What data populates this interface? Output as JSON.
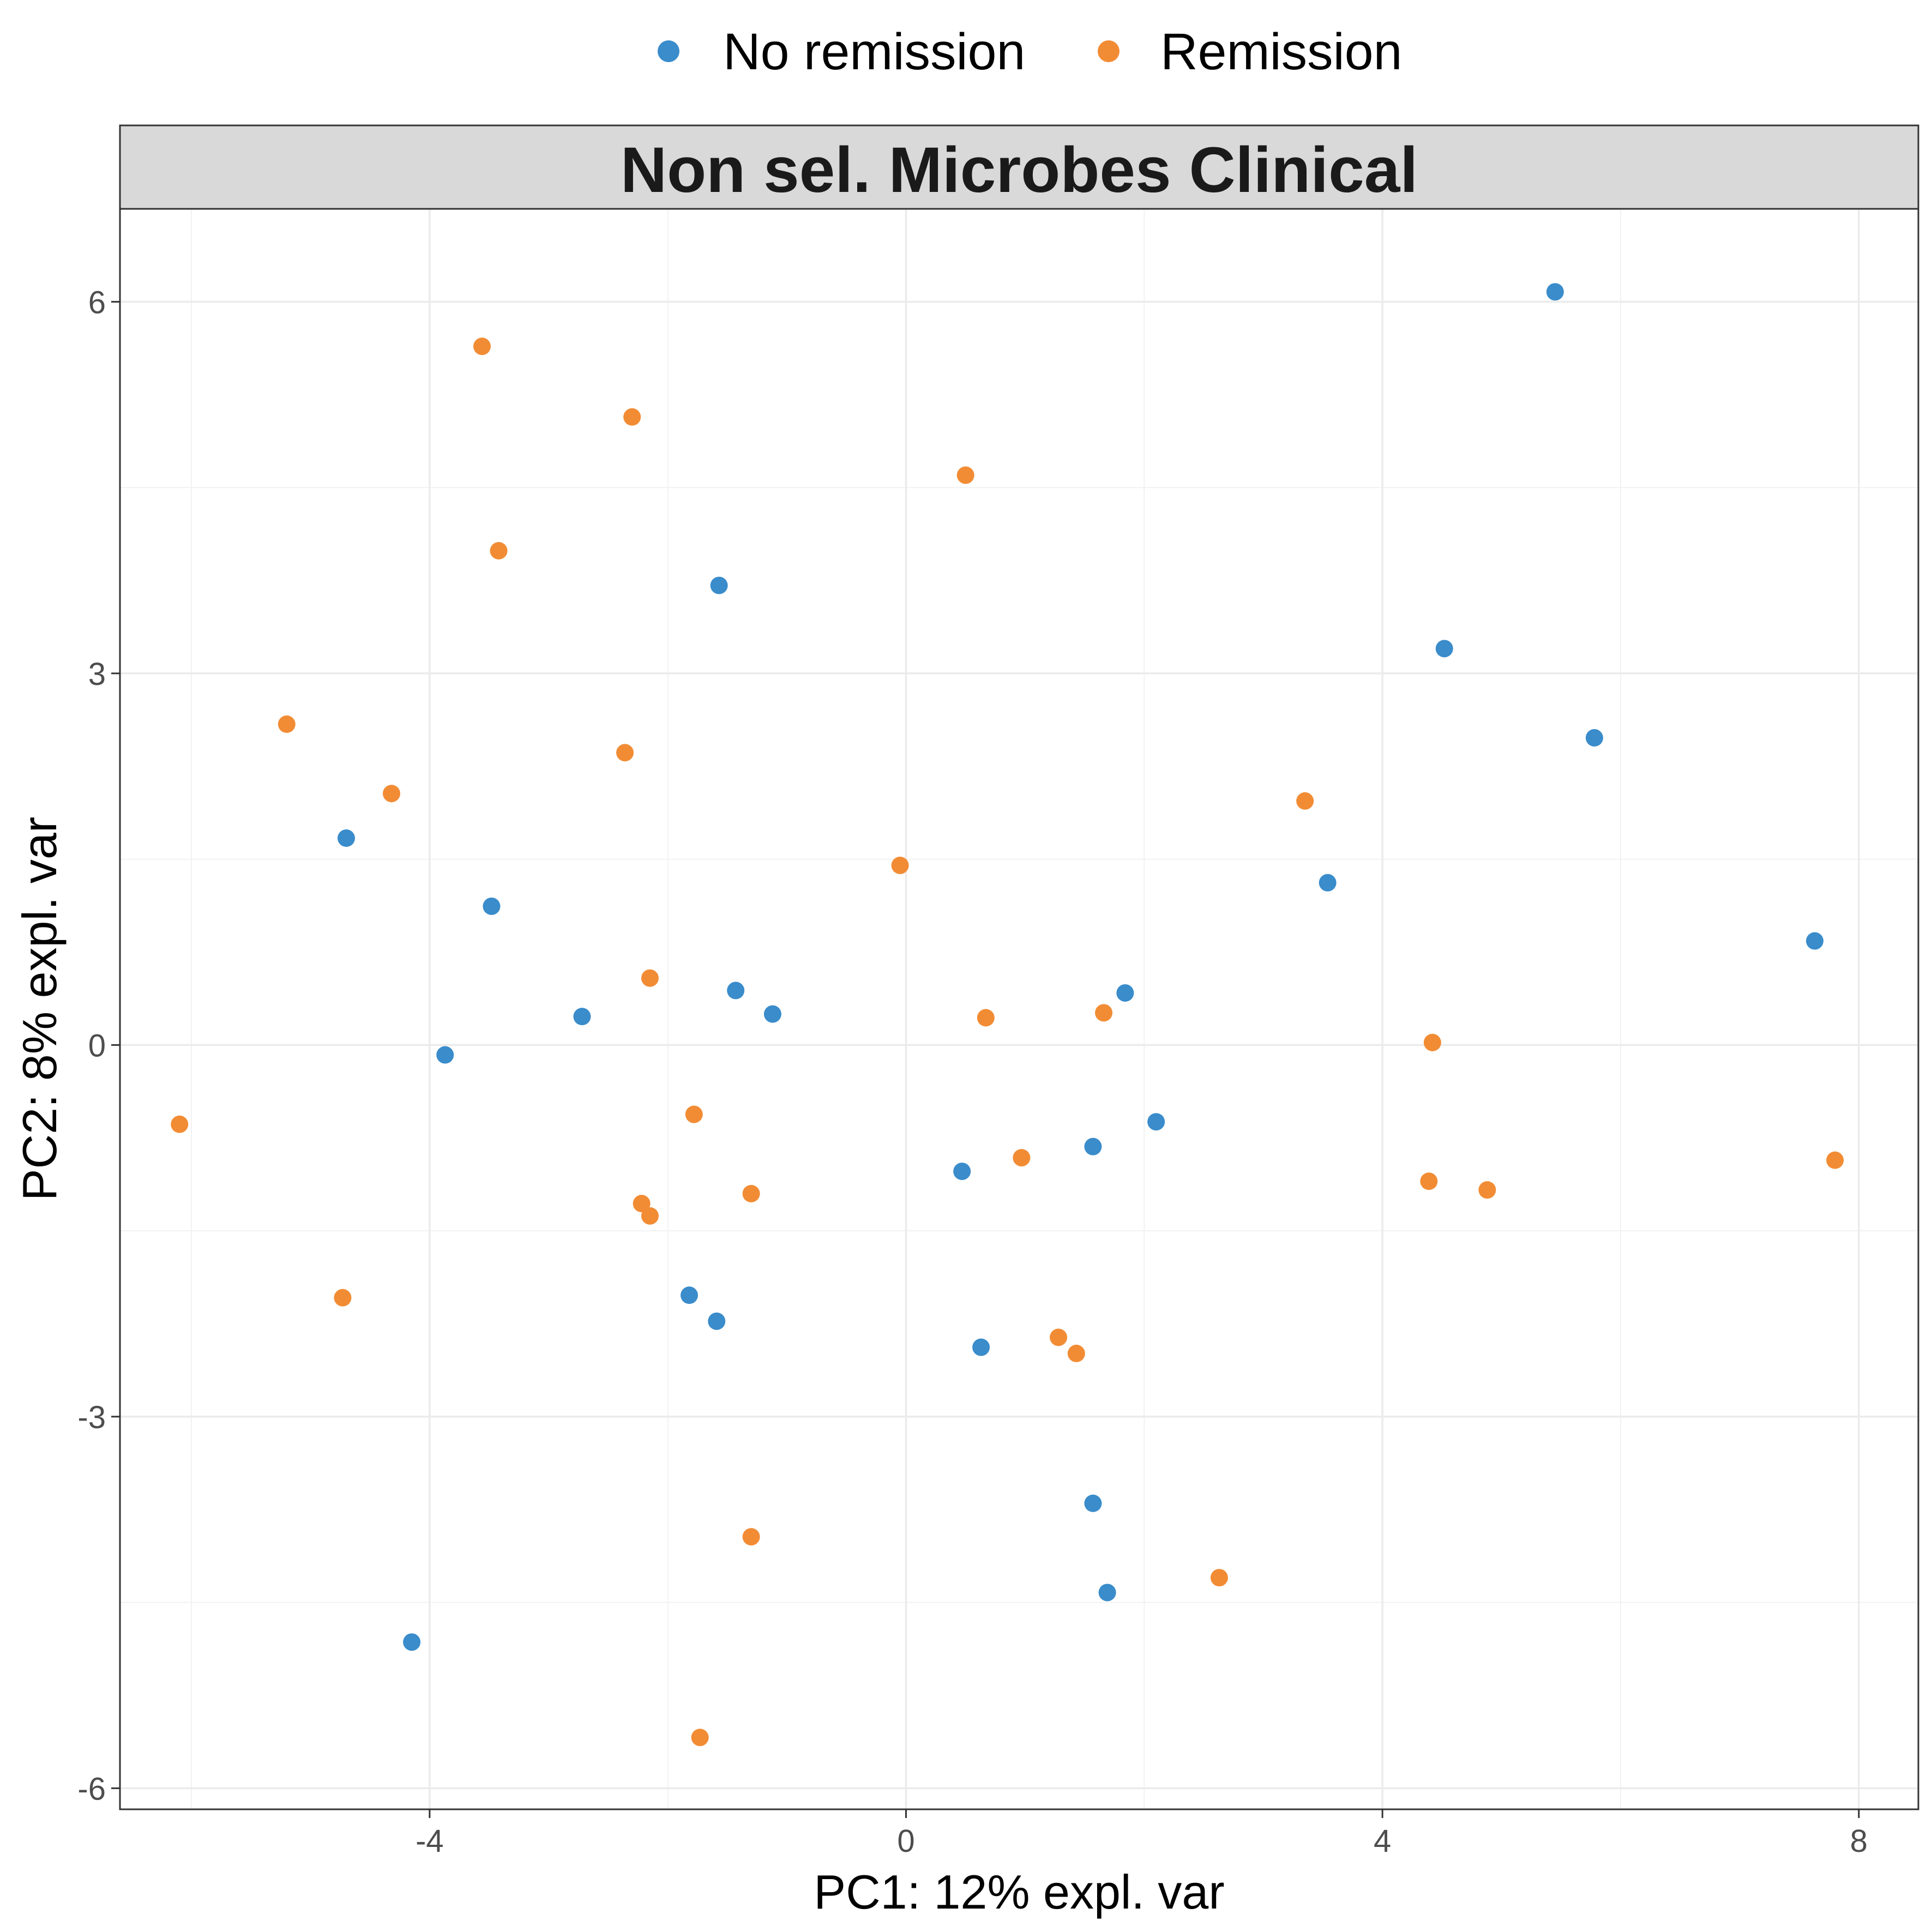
{
  "chart_data": {
    "type": "scatter",
    "title": "Non sel. Microbes Clinical",
    "xlabel": "PC1: 12% expl. var",
    "ylabel": "PC2: 8% expl. var",
    "xlim": [
      -6.6,
      8.5
    ],
    "ylim": [
      -6.17,
      6.75
    ],
    "x_ticks": [
      -4,
      0,
      4,
      8
    ],
    "y_ticks": [
      -6,
      -3,
      0,
      3,
      6
    ],
    "grid": true,
    "legend_position": "top",
    "series": [
      {
        "name": "No remission",
        "color": "#3a8ccb",
        "points": [
          {
            "x": 5.45,
            "y": 6.08
          },
          {
            "x": -1.57,
            "y": 3.71
          },
          {
            "x": 4.52,
            "y": 3.2
          },
          {
            "x": 5.78,
            "y": 2.48
          },
          {
            "x": -4.7,
            "y": 1.67
          },
          {
            "x": 3.54,
            "y": 1.31
          },
          {
            "x": -3.48,
            "y": 1.12
          },
          {
            "x": 7.63,
            "y": 0.84
          },
          {
            "x": -1.43,
            "y": 0.44
          },
          {
            "x": 1.84,
            "y": 0.42
          },
          {
            "x": -2.72,
            "y": 0.23
          },
          {
            "x": -1.12,
            "y": 0.25
          },
          {
            "x": -3.87,
            "y": -0.08
          },
          {
            "x": 2.1,
            "y": -0.62
          },
          {
            "x": 1.57,
            "y": -0.82
          },
          {
            "x": 0.47,
            "y": -1.02
          },
          {
            "x": -1.82,
            "y": -2.02
          },
          {
            "x": -1.59,
            "y": -2.23
          },
          {
            "x": 0.63,
            "y": -2.44
          },
          {
            "x": 1.57,
            "y": -3.7
          },
          {
            "x": 1.69,
            "y": -4.42
          },
          {
            "x": -4.15,
            "y": -4.82
          }
        ]
      },
      {
        "name": "Remission",
        "color": "#f28c34",
        "points": [
          {
            "x": -3.56,
            "y": 5.64
          },
          {
            "x": -2.3,
            "y": 5.07
          },
          {
            "x": 0.5,
            "y": 4.6
          },
          {
            "x": -3.42,
            "y": 3.99
          },
          {
            "x": -5.2,
            "y": 2.59
          },
          {
            "x": -2.36,
            "y": 2.36
          },
          {
            "x": -4.32,
            "y": 2.03
          },
          {
            "x": 3.35,
            "y": 1.97
          },
          {
            "x": -0.05,
            "y": 1.45
          },
          {
            "x": -2.15,
            "y": 0.54
          },
          {
            "x": 0.67,
            "y": 0.22
          },
          {
            "x": 1.66,
            "y": 0.26
          },
          {
            "x": 4.42,
            "y": 0.02
          },
          {
            "x": -1.78,
            "y": -0.56
          },
          {
            "x": -6.1,
            "y": -0.64
          },
          {
            "x": 0.97,
            "y": -0.91
          },
          {
            "x": 7.8,
            "y": -0.93
          },
          {
            "x": 4.39,
            "y": -1.1
          },
          {
            "x": 4.88,
            "y": -1.17
          },
          {
            "x": -1.3,
            "y": -1.2
          },
          {
            "x": -2.22,
            "y": -1.28
          },
          {
            "x": -2.15,
            "y": -1.38
          },
          {
            "x": -4.73,
            "y": -2.04
          },
          {
            "x": 1.28,
            "y": -2.36
          },
          {
            "x": 1.43,
            "y": -2.49
          },
          {
            "x": -1.3,
            "y": -3.97
          },
          {
            "x": 2.63,
            "y": -4.3
          },
          {
            "x": -1.73,
            "y": -5.59
          }
        ]
      }
    ]
  }
}
